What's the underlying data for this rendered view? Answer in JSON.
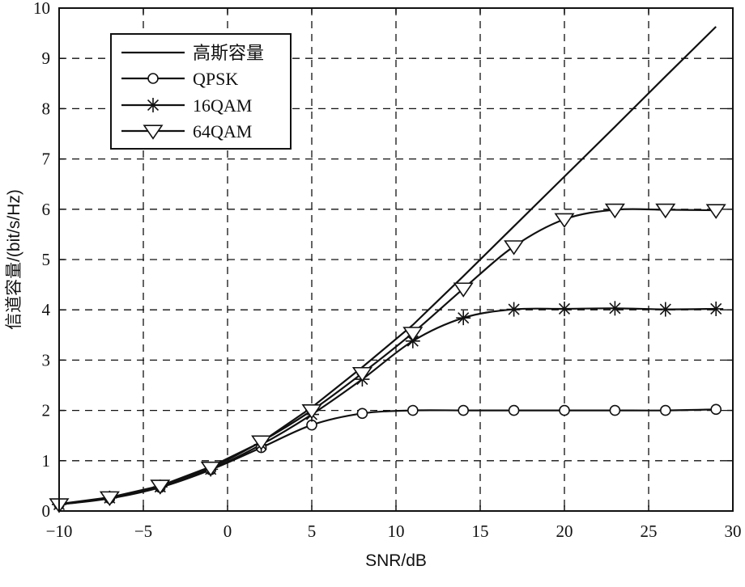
{
  "chart_data": {
    "type": "line",
    "title": "",
    "xlabel": "SNR/dB",
    "ylabel": "信道容量/(bit/s/Hz)",
    "xlim": [
      -10,
      30
    ],
    "ylim": [
      0,
      10
    ],
    "x_ticks": [
      -10,
      -5,
      0,
      5,
      10,
      15,
      20,
      25,
      30
    ],
    "x_tick_labels": [
      "−10",
      "−5",
      "0",
      "5",
      "10",
      "15",
      "20",
      "25",
      "30"
    ],
    "y_ticks": [
      0,
      1,
      2,
      3,
      4,
      5,
      6,
      7,
      8,
      9,
      10
    ],
    "y_tick_labels": [
      "0",
      "1",
      "2",
      "3",
      "4",
      "5",
      "6",
      "7",
      "8",
      "9",
      "10"
    ],
    "grid": true,
    "legend_position": "top-left",
    "series": [
      {
        "name": "高斯容量",
        "marker": "none",
        "x": [
          -10,
          -7,
          -4,
          -1,
          2,
          5,
          8,
          11,
          14,
          17,
          20,
          23,
          26,
          29
        ],
        "y": [
          0.14,
          0.27,
          0.5,
          0.88,
          1.37,
          2.06,
          2.86,
          3.7,
          4.67,
          5.66,
          6.65,
          7.64,
          8.64,
          9.63
        ]
      },
      {
        "name": "QPSK",
        "marker": "circle",
        "x": [
          -10,
          -7,
          -4,
          -1,
          2,
          5,
          8,
          11,
          14,
          17,
          20,
          23,
          26,
          29
        ],
        "y": [
          0.13,
          0.25,
          0.47,
          0.82,
          1.26,
          1.71,
          1.94,
          2.0,
          2.0,
          2.0,
          2.0,
          2.0,
          2.0,
          2.02
        ]
      },
      {
        "name": "16QAM",
        "marker": "star",
        "x": [
          -10,
          -7,
          -4,
          -1,
          2,
          5,
          8,
          11,
          14,
          17,
          20,
          23,
          26,
          29
        ],
        "y": [
          0.13,
          0.26,
          0.48,
          0.83,
          1.32,
          1.92,
          2.62,
          3.38,
          3.84,
          4.01,
          4.02,
          4.03,
          4.01,
          4.02
        ]
      },
      {
        "name": "64QAM",
        "marker": "triangle-down",
        "x": [
          -10,
          -7,
          -4,
          -1,
          2,
          5,
          8,
          11,
          14,
          17,
          20,
          23,
          26,
          29
        ],
        "y": [
          0.13,
          0.27,
          0.5,
          0.86,
          1.38,
          2.0,
          2.74,
          3.54,
          4.42,
          5.26,
          5.8,
          5.99,
          5.99,
          5.98
        ]
      }
    ]
  }
}
